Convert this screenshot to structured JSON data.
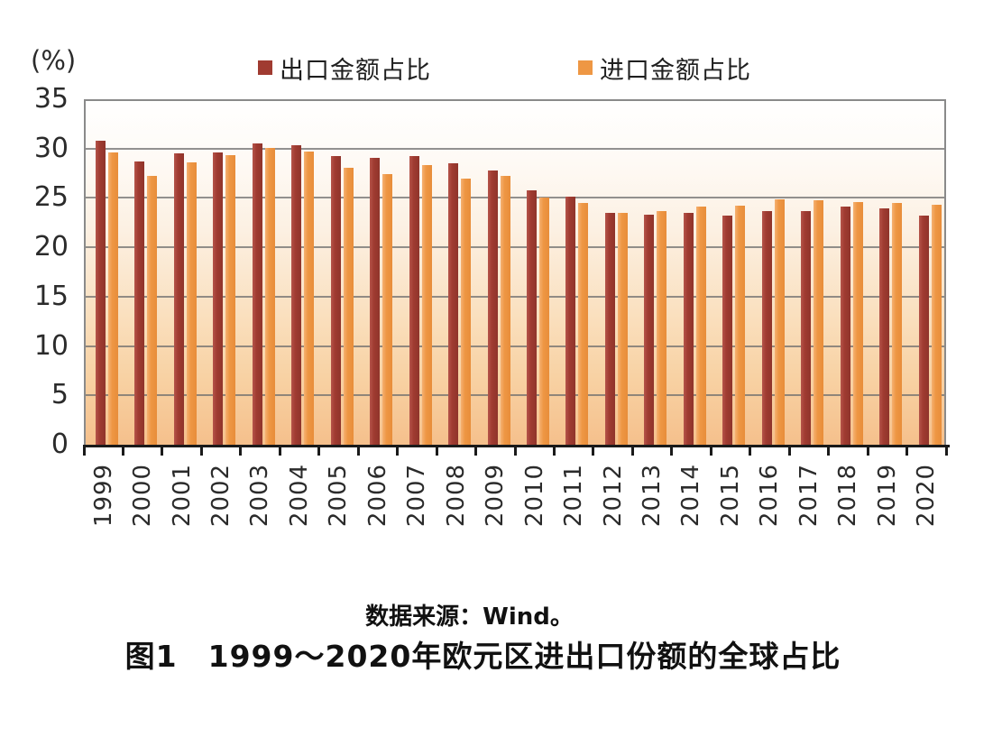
{
  "unit_label": "(%)",
  "legend": [
    {
      "label": "出口金额占比"
    },
    {
      "label": "进口金额占比"
    }
  ],
  "caption": {
    "source": "数据来源：Wind。",
    "title": "图1　1999～2020年欧元区进出口份额的全球占比"
  },
  "colors": {
    "export": "#A03B31",
    "export_light": "#B5544A",
    "export_dark": "#8F342B",
    "import": "#EE9744",
    "import_light": "#F5B172",
    "import_dark": "#E88D3A",
    "axis": "#1a1a1a",
    "grid": "#6e6e6e"
  },
  "chart_data": {
    "type": "bar",
    "title": "图1　1999～2020年欧元区进出口份额的全球占比",
    "xlabel": "",
    "ylabel": "(%)",
    "ylim": [
      0,
      35
    ],
    "yticks": [
      0,
      5,
      10,
      15,
      20,
      25,
      30,
      35
    ],
    "grid": true,
    "legend_position": "top",
    "categories": [
      "1999",
      "2000",
      "2001",
      "2002",
      "2003",
      "2004",
      "2005",
      "2006",
      "2007",
      "2008",
      "2009",
      "2010",
      "2011",
      "2012",
      "2013",
      "2014",
      "2015",
      "2016",
      "2017",
      "2018",
      "2019",
      "2020"
    ],
    "series": [
      {
        "id": "export",
        "name": "出口金额占比",
        "values": [
          30.8,
          28.7,
          29.5,
          29.6,
          30.5,
          30.3,
          29.2,
          29.1,
          29.2,
          28.5,
          27.8,
          25.8,
          25.1,
          23.5,
          23.3,
          23.5,
          23.2,
          23.7,
          23.7,
          24.1,
          23.9,
          23.2
        ]
      },
      {
        "id": "import",
        "name": "进口金额占比",
        "values": [
          29.6,
          27.2,
          28.6,
          29.3,
          30.1,
          29.7,
          28.1,
          27.4,
          28.3,
          27.0,
          27.2,
          25.0,
          24.5,
          23.5,
          23.7,
          24.1,
          24.2,
          24.9,
          24.8,
          24.6,
          24.5,
          24.3
        ]
      }
    ]
  }
}
